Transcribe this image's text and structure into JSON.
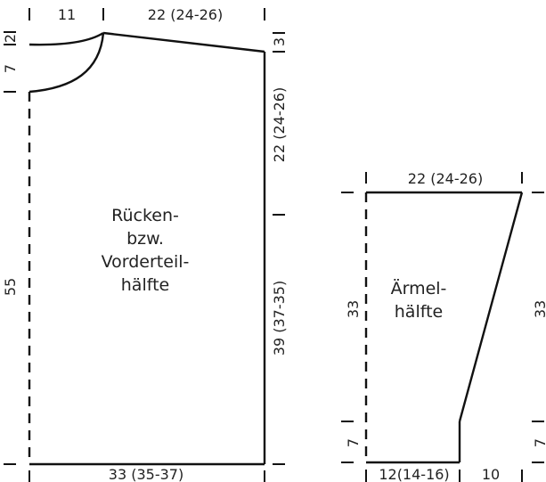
{
  "back_front_piece": {
    "title_lines": [
      "Rücken-",
      "bzw.",
      "Vorderteil-",
      "hälfte"
    ],
    "dim_top_neck": "11",
    "dim_top_shoulder": "22 (24-26)",
    "dim_left_neck_drop": "2",
    "dim_left_neck_depth": "7",
    "dim_left_total": "55",
    "dim_right_shoulder_slope": "3",
    "dim_right_armhole": "22 (24-26)",
    "dim_right_side": "39 (37-35)",
    "dim_bottom_width": "33 (35-37)"
  },
  "sleeve_piece": {
    "title_lines": [
      "Ärmel-",
      "hälfte"
    ],
    "dim_top_width": "22 (24-26)",
    "dim_left_upper": "33",
    "dim_left_cuff": "7",
    "dim_right_upper": "33",
    "dim_right_cuff": "7",
    "dim_bottom_width": "12(14-16)",
    "dim_bottom_extra": "10"
  }
}
